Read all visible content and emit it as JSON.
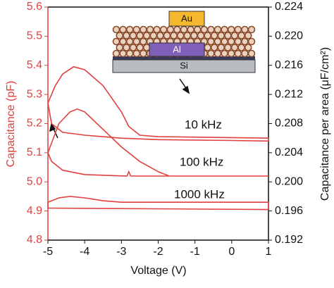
{
  "chart_data": {
    "type": "line",
    "xlabel": "Voltage (V)",
    "ylabel": "Capacitance (pF)",
    "y2label": "Capacitance per area (μF/cm²)",
    "xlim": [
      -5,
      1
    ],
    "xticks": [
      -5,
      -4,
      -3,
      -2,
      -1,
      0,
      1
    ],
    "ylim": [
      4.8,
      5.6
    ],
    "yticks": [
      4.8,
      4.9,
      {
        "value": 5.0,
        "label": "5.0"
      },
      5.1,
      5.2,
      5.3,
      5.4,
      5.5,
      5.6
    ],
    "y2lim": [
      0.192,
      0.224
    ],
    "y2ticks": [
      0.192,
      0.196,
      {
        "value": 0.2,
        "label": "0.200"
      },
      0.204,
      0.208,
      0.212,
      0.216,
      {
        "value": 0.22,
        "label": "0.220"
      },
      0.224
    ],
    "annotations": [
      "Au",
      "Al",
      "Si"
    ],
    "series": [
      {
        "name": "10 kHz",
        "color": "#e0403f",
        "x": [
          -5,
          -4.8,
          -4.6,
          -4.3,
          -4,
          -3.5,
          -3,
          -2.8,
          -2.5,
          -2,
          0,
          1,
          1,
          0,
          -2,
          -3,
          -4,
          -4.6,
          -4.9,
          -5
        ],
        "values": [
          5.27,
          5.33,
          5.37,
          5.395,
          5.385,
          5.33,
          5.24,
          5.19,
          5.16,
          5.155,
          5.152,
          5.15,
          5.14,
          5.142,
          5.145,
          5.15,
          5.16,
          5.17,
          5.2,
          5.27
        ]
      },
      {
        "name": "100 kHz",
        "color": "#e0403f",
        "x": [
          -5,
          -4.7,
          -4.4,
          -4.2,
          -4,
          -3.5,
          -3,
          -2.5,
          -2,
          -1.7,
          1,
          1,
          -2.75,
          -2.8,
          -2.85,
          -4,
          -4.6,
          -4.9,
          -5
        ],
        "values": [
          5.1,
          5.2,
          5.24,
          5.25,
          5.24,
          5.18,
          5.12,
          5.07,
          5.035,
          5.02,
          5.02,
          5.02,
          5.02,
          5.035,
          5.02,
          5.025,
          5.04,
          5.07,
          5.1
        ]
      },
      {
        "name": "1000 kHz",
        "color": "#e0403f",
        "x": [
          -5,
          -4.7,
          -4.4,
          -4,
          -3.5,
          -3,
          1,
          1,
          -5,
          -5
        ],
        "values": [
          4.93,
          4.945,
          4.95,
          4.945,
          4.935,
          4.93,
          4.93,
          4.905,
          4.91,
          4.93
        ]
      }
    ]
  }
}
